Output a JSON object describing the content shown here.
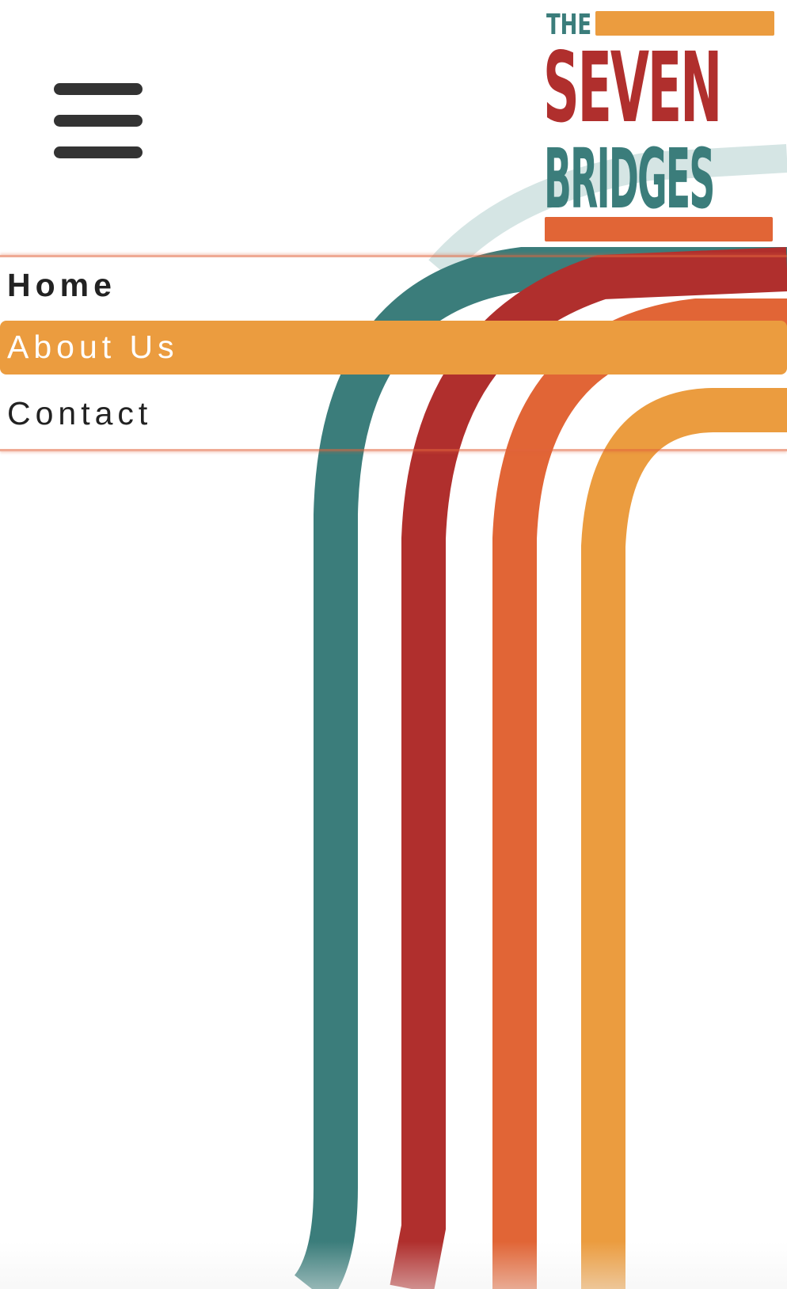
{
  "brand": {
    "logo_line1": "THE",
    "logo_line2": "SEVEN",
    "logo_line3": "BRIDGES",
    "colors": {
      "red": "#b02f2d",
      "teal": "#3b7d7b",
      "orange": "#e16536",
      "amber": "#eb9c3f"
    }
  },
  "header": {
    "menu_icon": "hamburger-menu-icon"
  },
  "nav": {
    "items": [
      {
        "label": "Home"
      },
      {
        "label": "About Us"
      },
      {
        "label": "Contact"
      }
    ],
    "active_color": "#eb9c3f"
  }
}
